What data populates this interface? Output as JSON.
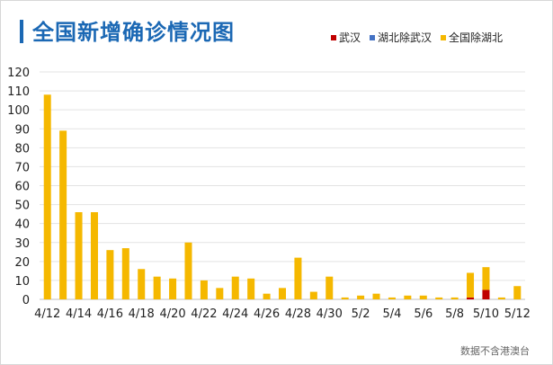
{
  "title": "全国新增确诊情况图",
  "source": "数据不含港澳台",
  "colors": {
    "accent": "#1b68b4",
    "wuhan": "#c00000",
    "hubei_ex_wuhan": "#4472c4",
    "national_ex_hubei": "#f5b800"
  },
  "legend": [
    {
      "name": "武汉",
      "color": "#c00000"
    },
    {
      "name": "湖北除武汉",
      "color": "#4472c4"
    },
    {
      "name": "全国除湖北",
      "color": "#f5b800"
    }
  ],
  "chart_data": {
    "type": "bar",
    "stacked": true,
    "title": "全国新增确诊情况图",
    "xlabel": "",
    "ylabel": "",
    "ylim": [
      0,
      120
    ],
    "yticks": [
      0,
      10,
      20,
      30,
      40,
      50,
      60,
      70,
      80,
      90,
      100,
      110,
      120
    ],
    "grid": true,
    "legend_position": "top-right",
    "categories": [
      "4/12",
      "4/13",
      "4/14",
      "4/15",
      "4/16",
      "4/17",
      "4/18",
      "4/19",
      "4/20",
      "4/21",
      "4/22",
      "4/23",
      "4/24",
      "4/25",
      "4/26",
      "4/27",
      "4/28",
      "4/29",
      "4/30",
      "5/1",
      "5/2",
      "5/3",
      "5/4",
      "5/5",
      "5/6",
      "5/7",
      "5/8",
      "5/9",
      "5/10",
      "5/11",
      "5/12"
    ],
    "xtick_labels": [
      "4/12",
      "4/14",
      "4/16",
      "4/18",
      "4/20",
      "4/22",
      "4/24",
      "4/26",
      "4/28",
      "4/30",
      "5/2",
      "5/4",
      "5/6",
      "5/8",
      "5/10",
      "5/12"
    ],
    "series": [
      {
        "name": "武汉",
        "values": [
          0,
          0,
          0,
          0,
          0,
          0,
          0,
          0,
          0,
          0,
          0,
          0,
          0,
          0,
          0,
          0,
          0,
          0,
          0,
          0,
          0,
          0,
          0,
          0,
          0,
          0,
          0,
          1,
          5,
          0,
          0
        ]
      },
      {
        "name": "湖北除武汉",
        "values": [
          0,
          0,
          0,
          0,
          0,
          0,
          0,
          0,
          0,
          0,
          0,
          0,
          0,
          0,
          0,
          0,
          0,
          0,
          0,
          0,
          0,
          0,
          0,
          0,
          0,
          0,
          0,
          0,
          0,
          0,
          0
        ]
      },
      {
        "name": "全国除湖北",
        "values": [
          108,
          89,
          46,
          46,
          26,
          27,
          16,
          12,
          11,
          30,
          10,
          6,
          12,
          11,
          3,
          6,
          22,
          4,
          12,
          1,
          2,
          3,
          1,
          2,
          2,
          1,
          1,
          13,
          12,
          1,
          7
        ]
      }
    ]
  }
}
